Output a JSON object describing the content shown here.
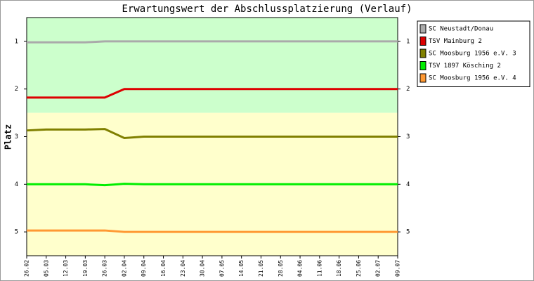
{
  "chart_data": {
    "type": "line",
    "title": "Erwartungswert der Abschlussplatzierung (Verlauf)",
    "y_label": "Platz",
    "categories": [
      "26.02",
      "05.03",
      "12.03",
      "19.03",
      "26.03",
      "02.04",
      "09.04",
      "16.04",
      "23.04",
      "30.04",
      "07.05",
      "14.05",
      "21.05",
      "28.05",
      "04.06",
      "11.06",
      "18.06",
      "25.06",
      "02.07",
      "09.07"
    ],
    "ylim": [
      0.5,
      5.5
    ],
    "y_inverted": true,
    "yticks": [
      1,
      2,
      3,
      4,
      5
    ],
    "bands": [
      {
        "from": 0.5,
        "to": 2.5,
        "color": "#ccffcc"
      },
      {
        "from": 2.5,
        "to": 5.5,
        "color": "#ffffcc"
      }
    ],
    "series": [
      {
        "name": "SC Neustadt/Donau",
        "color": "#aaaaaa",
        "values": [
          1.02,
          1.02,
          1.02,
          1.02,
          1,
          1,
          1,
          1,
          1,
          1,
          1,
          1,
          1,
          1,
          1,
          1,
          1,
          1,
          1,
          1
        ]
      },
      {
        "name": "TSV Mainburg 2",
        "color": "#dd0000",
        "values": [
          2.18,
          2.18,
          2.18,
          2.18,
          2.18,
          2,
          2,
          2,
          2,
          2,
          2,
          2,
          2,
          2,
          2,
          2,
          2,
          2,
          2,
          2
        ]
      },
      {
        "name": "SC Moosburg 1956 e.V. 3",
        "color": "#808000",
        "values": [
          2.87,
          2.85,
          2.85,
          2.85,
          2.84,
          3.03,
          3,
          3,
          3,
          3,
          3,
          3,
          3,
          3,
          3,
          3,
          3,
          3,
          3,
          3
        ]
      },
      {
        "name": "TSV 1897 Kösching 2",
        "color": "#00ee00",
        "values": [
          4,
          4,
          4,
          4,
          4.02,
          3.99,
          4,
          4,
          4,
          4,
          4,
          4,
          4,
          4,
          4,
          4,
          4,
          4,
          4,
          4
        ]
      },
      {
        "name": "SC Moosburg 1956 e.V. 4",
        "color": "#ff9933",
        "values": [
          4.97,
          4.97,
          4.97,
          4.97,
          4.97,
          5,
          5,
          5,
          5,
          5,
          5,
          5,
          5,
          5,
          5,
          5,
          5,
          5,
          5,
          5
        ]
      }
    ]
  }
}
